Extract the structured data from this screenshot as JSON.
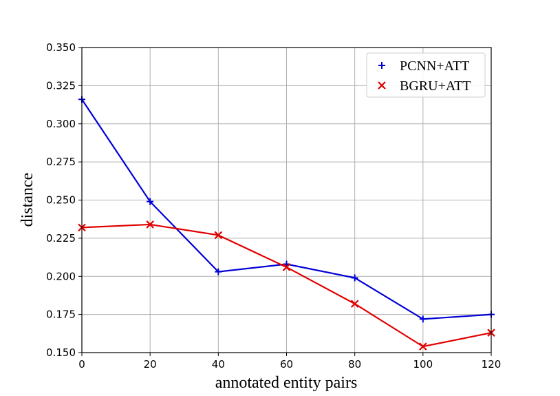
{
  "chart_data": {
    "type": "line",
    "title": "",
    "xlabel": "annotated entity pairs",
    "ylabel": "distance",
    "x": [
      0,
      20,
      40,
      60,
      80,
      100,
      120
    ],
    "xlim": [
      0,
      120
    ],
    "ylim": [
      0.15,
      0.35
    ],
    "xticks": [
      "0",
      "20",
      "40",
      "60",
      "80",
      "100",
      "120"
    ],
    "yticks": [
      "0.150",
      "0.175",
      "0.200",
      "0.225",
      "0.250",
      "0.275",
      "0.300",
      "0.325",
      "0.350"
    ],
    "grid": true,
    "legend_position": "top-right",
    "series": [
      {
        "name": "PCNN+ATT",
        "marker": "+",
        "color": "#0000d8",
        "values": [
          0.316,
          0.249,
          0.203,
          0.208,
          0.199,
          0.172,
          0.175
        ]
      },
      {
        "name": "BGRU+ATT",
        "marker": "x",
        "color": "#e00000",
        "values": [
          0.232,
          0.234,
          0.227,
          0.206,
          0.182,
          0.154,
          0.163
        ]
      }
    ]
  }
}
